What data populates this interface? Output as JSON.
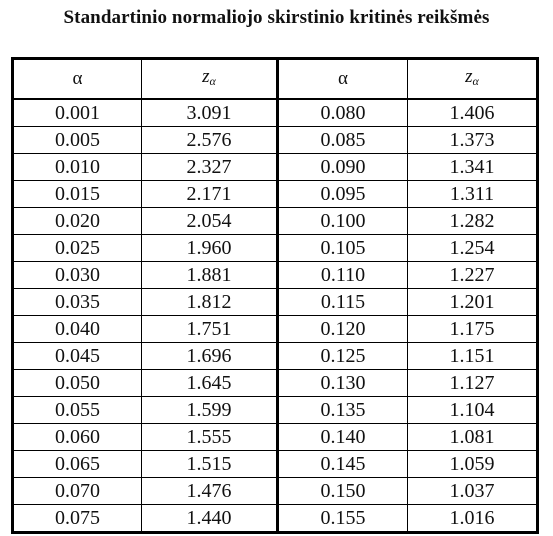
{
  "title": "Standartinio normaliojo skirstinio kritinės reikšmės",
  "headers": {
    "alpha": "α",
    "z_main": "z",
    "z_sub": "α"
  },
  "left_rows": [
    {
      "alpha": "0.001",
      "z": "3.091",
      "bold": false
    },
    {
      "alpha": "0.005",
      "z": "2.576",
      "bold": true
    },
    {
      "alpha": "0.010",
      "z": "2.327",
      "bold": true
    },
    {
      "alpha": "0.015",
      "z": "2.171",
      "bold": false
    },
    {
      "alpha": "0.020",
      "z": "2.054",
      "bold": false
    },
    {
      "alpha": "0.025",
      "z": "1.960",
      "bold": true
    },
    {
      "alpha": "0.030",
      "z": "1.881",
      "bold": false
    },
    {
      "alpha": "0.035",
      "z": "1.812",
      "bold": false
    },
    {
      "alpha": "0.040",
      "z": "1.751",
      "bold": false
    },
    {
      "alpha": "0.045",
      "z": "1.696",
      "bold": false
    },
    {
      "alpha": "0.050",
      "z": "1.645",
      "bold": true
    },
    {
      "alpha": "0.055",
      "z": "1.599",
      "bold": false
    },
    {
      "alpha": "0.060",
      "z": "1.555",
      "bold": false
    },
    {
      "alpha": "0.065",
      "z": "1.515",
      "bold": false
    },
    {
      "alpha": "0.070",
      "z": "1.476",
      "bold": false
    },
    {
      "alpha": "0.075",
      "z": "1.440",
      "bold": false
    }
  ],
  "right_rows": [
    {
      "alpha": "0.080",
      "z": "1.406",
      "bold": false
    },
    {
      "alpha": "0.085",
      "z": "1.373",
      "bold": false
    },
    {
      "alpha": "0.090",
      "z": "1.341",
      "bold": false
    },
    {
      "alpha": "0.095",
      "z": "1.311",
      "bold": false
    },
    {
      "alpha": "0.100",
      "z": "1.282",
      "bold": true
    },
    {
      "alpha": "0.105",
      "z": "1.254",
      "bold": false
    },
    {
      "alpha": "0.110",
      "z": "1.227",
      "bold": false
    },
    {
      "alpha": "0.115",
      "z": "1.201",
      "bold": false
    },
    {
      "alpha": "0.120",
      "z": "1.175",
      "bold": false
    },
    {
      "alpha": "0.125",
      "z": "1.151",
      "bold": false
    },
    {
      "alpha": "0.130",
      "z": "1.127",
      "bold": false
    },
    {
      "alpha": "0.135",
      "z": "1.104",
      "bold": false
    },
    {
      "alpha": "0.140",
      "z": "1.081",
      "bold": false
    },
    {
      "alpha": "0.145",
      "z": "1.059",
      "bold": false
    },
    {
      "alpha": "0.150",
      "z": "1.037",
      "bold": false
    },
    {
      "alpha": "0.155",
      "z": "1.016",
      "bold": false
    }
  ]
}
